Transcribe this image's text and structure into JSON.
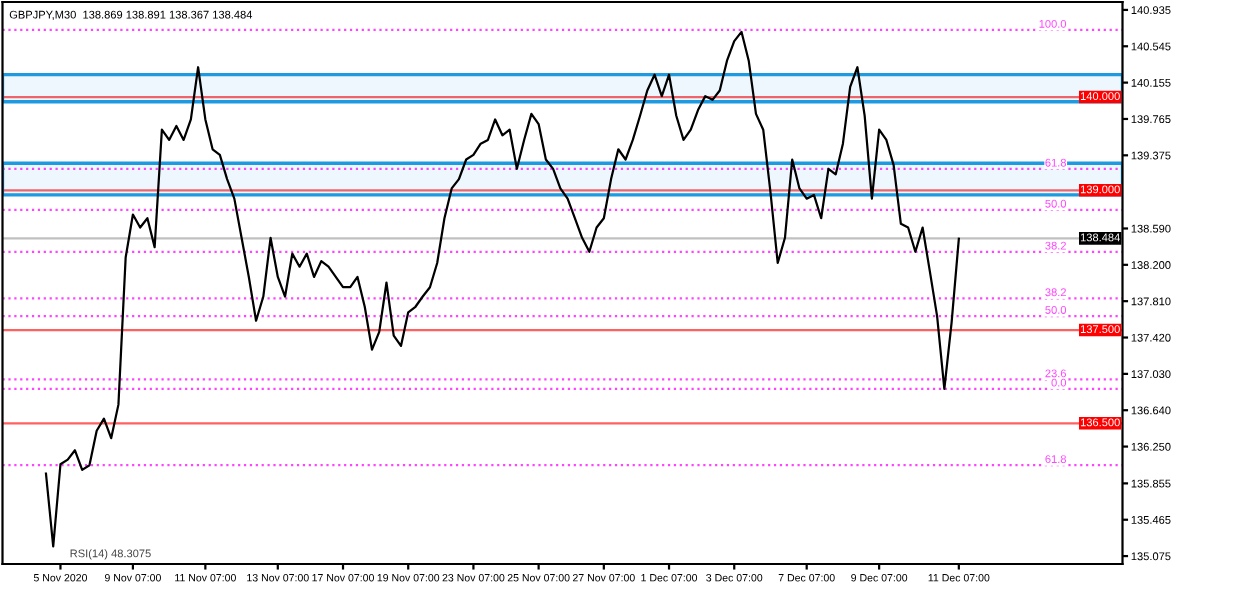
{
  "chart_data": {
    "type": "line",
    "title": "GBPJPY,M30  138.869 138.891 138.367 138.484",
    "annotations": [
      "RSI(14) 48.3075",
      {
        "text": "100.0",
        "y": 140.72
      },
      {
        "text": "61.8",
        "y": 139.23
      },
      {
        "text": "50.0",
        "y": 138.79
      },
      {
        "text": "38.2",
        "y": 138.34
      },
      {
        "text": "38.2",
        "y": 137.84
      },
      {
        "text": "50.0",
        "y": 137.65
      },
      {
        "text": "23.6",
        "y": 136.97
      },
      {
        "text": "0.0",
        "y": 136.87
      },
      {
        "text": "61.8",
        "y": 136.05
      }
    ],
    "categories": [
      null,
      null,
      "5 Nov 2020",
      null,
      null,
      null,
      null,
      null,
      null,
      null,
      null,
      null,
      "9 Nov 07:00",
      null,
      null,
      null,
      null,
      null,
      null,
      null,
      null,
      null,
      "11 Nov 07:00",
      null,
      null,
      null,
      null,
      null,
      null,
      null,
      null,
      null,
      "13 Nov 07:00",
      null,
      null,
      null,
      null,
      null,
      null,
      null,
      null,
      "17 Nov 07:00",
      null,
      null,
      null,
      null,
      null,
      null,
      null,
      null,
      "19 Nov 07:00",
      null,
      null,
      null,
      null,
      null,
      null,
      null,
      null,
      "23 Nov 07:00",
      null,
      null,
      null,
      null,
      null,
      null,
      null,
      null,
      "25 Nov 07:00",
      null,
      null,
      null,
      null,
      null,
      null,
      null,
      null,
      "27 Nov 07:00",
      null,
      null,
      null,
      null,
      null,
      null,
      null,
      null,
      "1 Dec 07:00",
      null,
      null,
      null,
      null,
      null,
      null,
      null,
      null,
      "3 Dec 07:00",
      null,
      null,
      null,
      null,
      null,
      null,
      null,
      null,
      null,
      "7 Dec 07:00",
      null,
      null,
      null,
      null,
      null,
      null,
      null,
      null,
      null,
      "9 Dec 07:00",
      null,
      null,
      null,
      null,
      null,
      null,
      null,
      null,
      null,
      null,
      "11 Dec 07:00"
    ],
    "series": [
      {
        "color": "#000000",
        "values": [
          135.96,
          135.18,
          136.06,
          136.11,
          136.21,
          136.0,
          136.05,
          136.42,
          136.55,
          136.34,
          136.7,
          138.28,
          138.74,
          138.6,
          138.7,
          138.39,
          139.65,
          139.54,
          139.69,
          139.54,
          139.76,
          140.32,
          139.76,
          139.44,
          139.38,
          139.12,
          138.91,
          138.49,
          138.07,
          137.6,
          137.86,
          138.49,
          138.07,
          137.86,
          138.32,
          138.18,
          138.32,
          138.07,
          138.24,
          138.18,
          138.07,
          137.96,
          137.96,
          138.07,
          137.75,
          137.29,
          137.48,
          138.01,
          137.44,
          137.33,
          137.69,
          137.75,
          137.86,
          137.96,
          138.22,
          138.7,
          139.02,
          139.12,
          139.33,
          139.38,
          139.5,
          139.54,
          139.76,
          139.59,
          139.65,
          139.23,
          139.54,
          139.82,
          139.71,
          139.33,
          139.23,
          139.02,
          138.91,
          138.7,
          138.49,
          138.34,
          138.6,
          138.7,
          139.12,
          139.44,
          139.33,
          139.54,
          139.8,
          140.07,
          140.24,
          140.01,
          140.24,
          139.8,
          139.54,
          139.65,
          139.86,
          140.01,
          139.97,
          140.07,
          140.39,
          140.6,
          140.7,
          140.39,
          139.82,
          139.65,
          138.98,
          138.22,
          138.49,
          139.33,
          139.02,
          138.91,
          138.95,
          138.7,
          139.23,
          139.17,
          139.5,
          140.11,
          140.32,
          139.8,
          138.91,
          139.65,
          139.54,
          139.27,
          138.64,
          138.6,
          138.34,
          138.6,
          138.13,
          137.65,
          136.87,
          137.58,
          138.48
        ]
      }
    ],
    "ylim": [
      134.99,
      141.02
    ],
    "yticks": [
      {
        "value": 140.935,
        "label": "140.935"
      },
      {
        "value": 140.545,
        "label": "140.545"
      },
      {
        "value": 140.155,
        "label": "140.155"
      },
      {
        "value": 139.765,
        "label": "139.765"
      },
      {
        "value": 139.375,
        "label": "139.375"
      },
      {
        "value": 138.59,
        "label": "138.590"
      },
      {
        "value": 138.2,
        "label": "138.200"
      },
      {
        "value": 137.81,
        "label": "137.810"
      },
      {
        "value": 137.42,
        "label": "137.420"
      },
      {
        "value": 137.03,
        "label": "137.030"
      },
      {
        "value": 136.64,
        "label": "136.640"
      },
      {
        "value": 136.25,
        "label": "136.250"
      },
      {
        "value": 135.855,
        "label": "135.855"
      },
      {
        "value": 135.465,
        "label": "135.465"
      },
      {
        "value": 135.075,
        "label": "135.075"
      }
    ],
    "ref_lines": [
      {
        "axis": "y",
        "value": 140.0,
        "label": "140.000",
        "color": "#ff6060",
        "line_style": "solid"
      },
      {
        "axis": "y",
        "value": 139.0,
        "label": "139.000",
        "color": "#ff6060",
        "line_style": "solid"
      },
      {
        "axis": "y",
        "value": 137.5,
        "label": "137.500",
        "color": "#ff6060",
        "line_style": "solid"
      },
      {
        "axis": "y",
        "value": 136.5,
        "label": "136.500",
        "color": "#ff6060",
        "line_style": "solid"
      },
      {
        "axis": "y",
        "value": 138.484,
        "label": "138.484",
        "color": "#c0c0c0",
        "line_style": "solid"
      },
      {
        "axis": "y",
        "value": 140.72,
        "color": "#ff44ff",
        "line_style": "dotted"
      },
      {
        "axis": "y",
        "value": 139.23,
        "color": "#ff44ff",
        "line_style": "dotted"
      },
      {
        "axis": "y",
        "value": 138.79,
        "color": "#ff44ff",
        "line_style": "dotted"
      },
      {
        "axis": "y",
        "value": 138.34,
        "color": "#ff44ff",
        "line_style": "dotted"
      },
      {
        "axis": "y",
        "value": 137.84,
        "color": "#ff44ff",
        "line_style": "dotted"
      },
      {
        "axis": "y",
        "value": 137.65,
        "color": "#ff44ff",
        "line_style": "dotted"
      },
      {
        "axis": "y",
        "value": 136.97,
        "color": "#ff44ff",
        "line_style": "dotted"
      },
      {
        "axis": "y",
        "value": 136.87,
        "color": "#ff44ff",
        "line_style": "dotted"
      },
      {
        "axis": "y",
        "value": 136.05,
        "color": "#ff44ff",
        "line_style": "dotted"
      }
    ],
    "bands": [
      {
        "axis": "y",
        "from": 139.95,
        "to": 140.24,
        "color": "#1e9be0"
      },
      {
        "axis": "y",
        "from": 138.95,
        "to": 139.29,
        "color": "#1e9be0"
      }
    ],
    "grid": false,
    "legend": false,
    "marker": "none",
    "line_style": "solid"
  }
}
